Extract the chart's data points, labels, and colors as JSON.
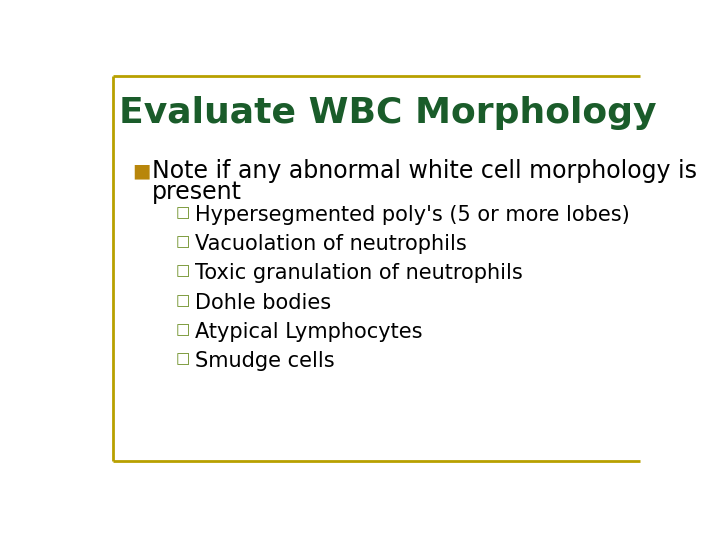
{
  "title": "Evaluate WBC Morphology",
  "title_color": "#1a5c2a",
  "background_color": "#ffffff",
  "border_color": "#b8a000",
  "main_bullet_marker_color": "#b8860b",
  "sub_bullet_marker_color": "#6b8e23",
  "main_bullet_text": "Note if any abnormal white cell morphology is present",
  "main_bullet_line1": "Note if any abnormal white cell morphology is",
  "main_bullet_line2": "present",
  "main_bullet_color": "#000000",
  "sub_bullets": [
    "Hypersegmented poly's (5 or more lobes)",
    "Vacuolation of neutrophils",
    "Toxic granulation of neutrophils",
    "Dohle bodies",
    "Atypical Lymphocytes",
    "Smudge cells"
  ],
  "sub_bullet_color": "#000000",
  "title_fontsize": 26,
  "main_fontsize": 17,
  "sub_fontsize": 15
}
